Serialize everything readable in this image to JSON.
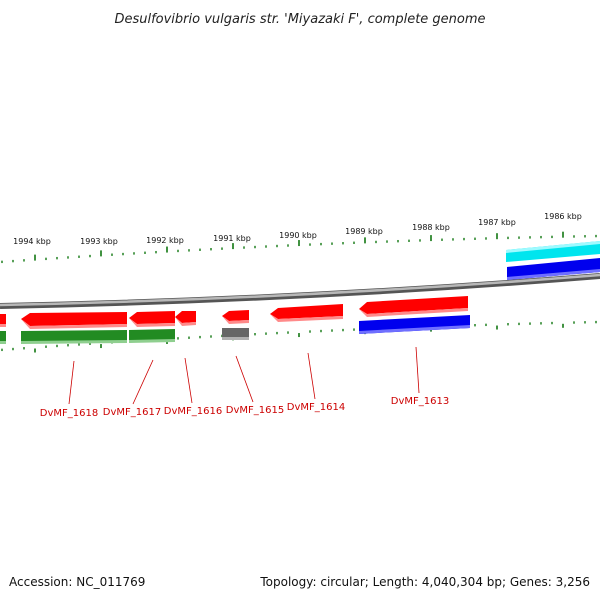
{
  "title": "Desulfovibrio vulgaris str. 'Miyazaki F', complete genome",
  "footer": {
    "accession": "Accession: NC_011769",
    "info": "Topology: circular; Length: 4,040,304 bp; Genes: 3,256"
  },
  "ticks": [
    "1994 kbp",
    "1993 kbp",
    "1992 kbp",
    "1991 kbp",
    "1990 kbp",
    "1989 kbp",
    "1988 kbp",
    "1987 kbp",
    "1986 kbp"
  ],
  "genes": [
    {
      "label": "DvMF_1618"
    },
    {
      "label": "DvMF_1617"
    },
    {
      "label": "DvMF_1616"
    },
    {
      "label": "DvMF_1615"
    },
    {
      "label": "DvMF_1614"
    },
    {
      "label": "DvMF_1613"
    }
  ],
  "colors": {
    "gene_arrow": "#ff0000",
    "cds_green": "#228b22",
    "cds_gray": "#666666",
    "cds_blue": "#0000ee",
    "cds_cyan": "#00e5ee",
    "tick": "#117711",
    "gene_label": "#cc0000",
    "backbone": "#888888"
  }
}
